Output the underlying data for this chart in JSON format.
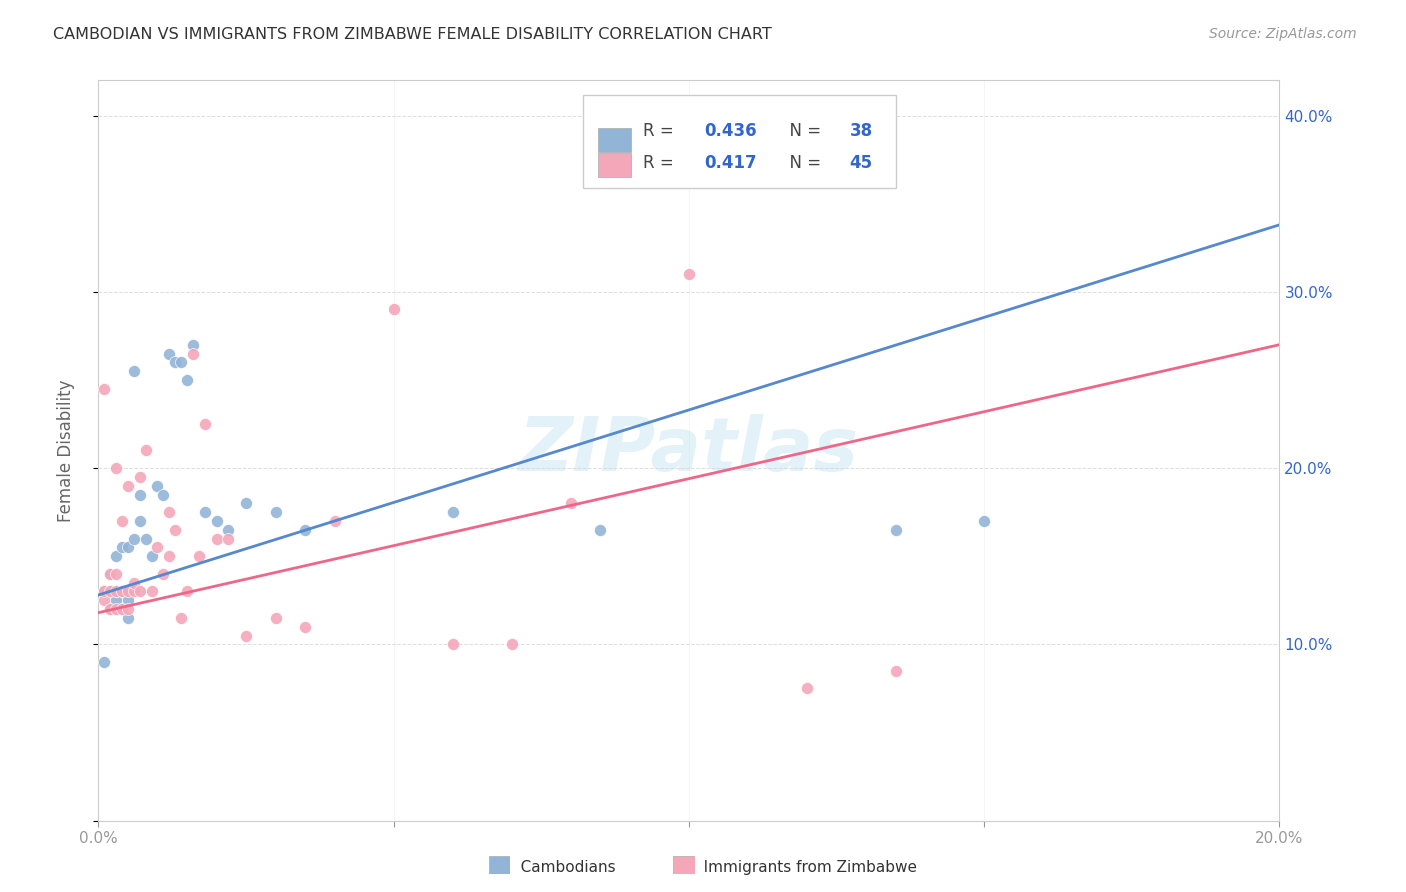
{
  "title": "CAMBODIAN VS IMMIGRANTS FROM ZIMBABWE FEMALE DISABILITY CORRELATION CHART",
  "source": "Source: ZipAtlas.com",
  "ylabel": "Female Disability",
  "xlim": [
    0.0,
    0.2
  ],
  "ylim": [
    0.0,
    0.42
  ],
  "blue_color": "#92B4D7",
  "pink_color": "#F4A7B9",
  "blue_line_color": "#5588CC",
  "pink_line_color": "#EE6688",
  "r_blue": 0.436,
  "n_blue": 38,
  "r_pink": 0.417,
  "n_pink": 45,
  "watermark": "ZIPatlas",
  "cambodians_x": [
    0.001,
    0.001,
    0.002,
    0.002,
    0.002,
    0.003,
    0.003,
    0.003,
    0.003,
    0.004,
    0.004,
    0.004,
    0.005,
    0.005,
    0.005,
    0.006,
    0.006,
    0.007,
    0.007,
    0.008,
    0.009,
    0.01,
    0.011,
    0.012,
    0.013,
    0.014,
    0.015,
    0.016,
    0.018,
    0.02,
    0.022,
    0.025,
    0.03,
    0.035,
    0.06,
    0.085,
    0.135,
    0.15
  ],
  "cambodians_y": [
    0.09,
    0.13,
    0.12,
    0.13,
    0.14,
    0.12,
    0.125,
    0.13,
    0.15,
    0.12,
    0.13,
    0.155,
    0.115,
    0.125,
    0.155,
    0.16,
    0.255,
    0.17,
    0.185,
    0.16,
    0.15,
    0.19,
    0.185,
    0.265,
    0.26,
    0.26,
    0.25,
    0.27,
    0.175,
    0.17,
    0.165,
    0.18,
    0.175,
    0.165,
    0.175,
    0.165,
    0.165,
    0.17
  ],
  "zimbabwe_x": [
    0.001,
    0.001,
    0.001,
    0.002,
    0.002,
    0.002,
    0.003,
    0.003,
    0.003,
    0.003,
    0.004,
    0.004,
    0.004,
    0.005,
    0.005,
    0.005,
    0.006,
    0.006,
    0.007,
    0.007,
    0.008,
    0.009,
    0.01,
    0.011,
    0.012,
    0.012,
    0.013,
    0.014,
    0.015,
    0.016,
    0.017,
    0.018,
    0.02,
    0.022,
    0.025,
    0.03,
    0.035,
    0.04,
    0.05,
    0.06,
    0.07,
    0.08,
    0.1,
    0.12,
    0.135
  ],
  "zimbabwe_y": [
    0.125,
    0.13,
    0.245,
    0.12,
    0.13,
    0.14,
    0.12,
    0.13,
    0.14,
    0.2,
    0.12,
    0.13,
    0.17,
    0.12,
    0.13,
    0.19,
    0.13,
    0.135,
    0.13,
    0.195,
    0.21,
    0.13,
    0.155,
    0.14,
    0.15,
    0.175,
    0.165,
    0.115,
    0.13,
    0.265,
    0.15,
    0.225,
    0.16,
    0.16,
    0.105,
    0.115,
    0.11,
    0.17,
    0.29,
    0.1,
    0.1,
    0.18,
    0.31,
    0.075,
    0.085
  ]
}
